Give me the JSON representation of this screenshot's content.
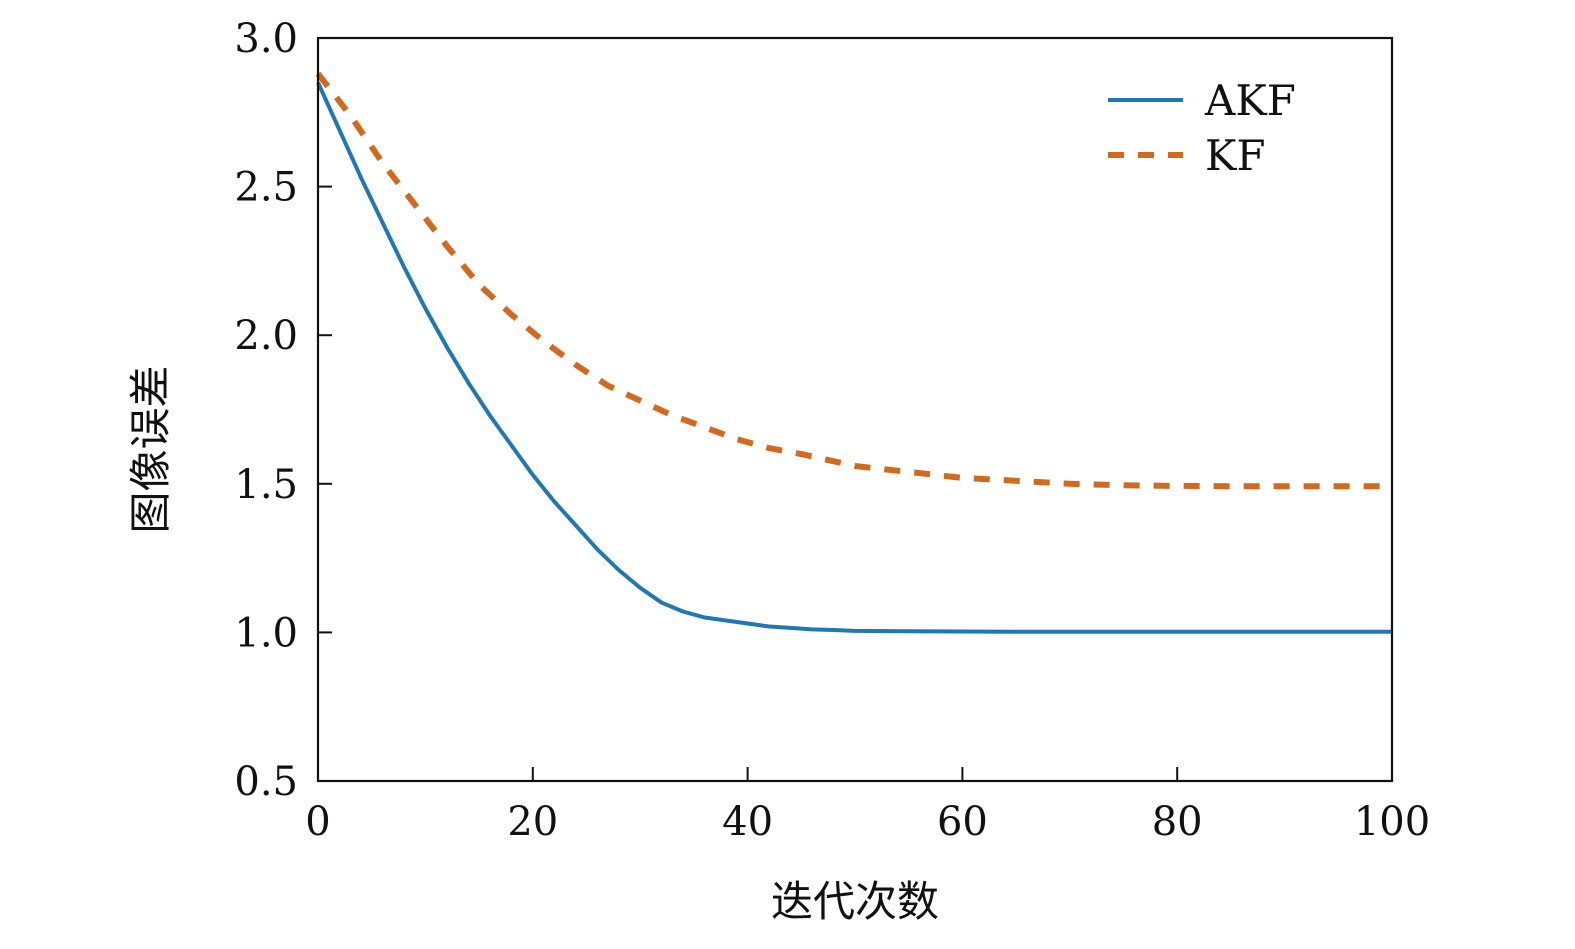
{
  "chart_data": {
    "type": "line",
    "title": "",
    "xlabel": "迭代次数",
    "ylabel": "图像误差",
    "xlim": [
      0,
      100
    ],
    "ylim": [
      0.5,
      3.0
    ],
    "xticks": [
      "0",
      "20",
      "40",
      "60",
      "80",
      "100"
    ],
    "yticks": [
      "0.5",
      "1.0",
      "1.5",
      "2.0",
      "2.5",
      "3.0"
    ],
    "grid": false,
    "legend_position": "top-right",
    "series": [
      {
        "name": "AKF",
        "color": "#1f77b4",
        "style": "solid",
        "x": [
          0,
          2,
          4,
          6,
          8,
          10,
          12,
          14,
          16,
          18,
          20,
          22,
          24,
          26,
          28,
          30,
          32,
          34,
          36,
          38,
          40,
          42,
          44,
          46,
          48,
          50,
          55,
          60,
          65,
          70,
          75,
          80,
          85,
          90,
          95,
          100
        ],
        "y": [
          2.85,
          2.69,
          2.53,
          2.38,
          2.23,
          2.09,
          1.96,
          1.84,
          1.73,
          1.63,
          1.53,
          1.44,
          1.36,
          1.28,
          1.21,
          1.15,
          1.1,
          1.07,
          1.05,
          1.04,
          1.03,
          1.02,
          1.015,
          1.01,
          1.008,
          1.005,
          1.004,
          1.003,
          1.002,
          1.002,
          1.002,
          1.002,
          1.002,
          1.002,
          1.002,
          1.002
        ]
      },
      {
        "name": "KF",
        "color": "#d2691e",
        "style": "dashed",
        "x": [
          0,
          3,
          6,
          9,
          12,
          15,
          18,
          21,
          24,
          27,
          30,
          33,
          36,
          39,
          42,
          45,
          50,
          55,
          60,
          65,
          70,
          75,
          80,
          85,
          90,
          95,
          100
        ],
        "y": [
          2.88,
          2.74,
          2.58,
          2.44,
          2.3,
          2.17,
          2.07,
          1.98,
          1.9,
          1.83,
          1.78,
          1.73,
          1.69,
          1.65,
          1.62,
          1.6,
          1.56,
          1.54,
          1.52,
          1.51,
          1.5,
          1.495,
          1.493,
          1.492,
          1.492,
          1.492,
          1.492
        ]
      }
    ]
  }
}
